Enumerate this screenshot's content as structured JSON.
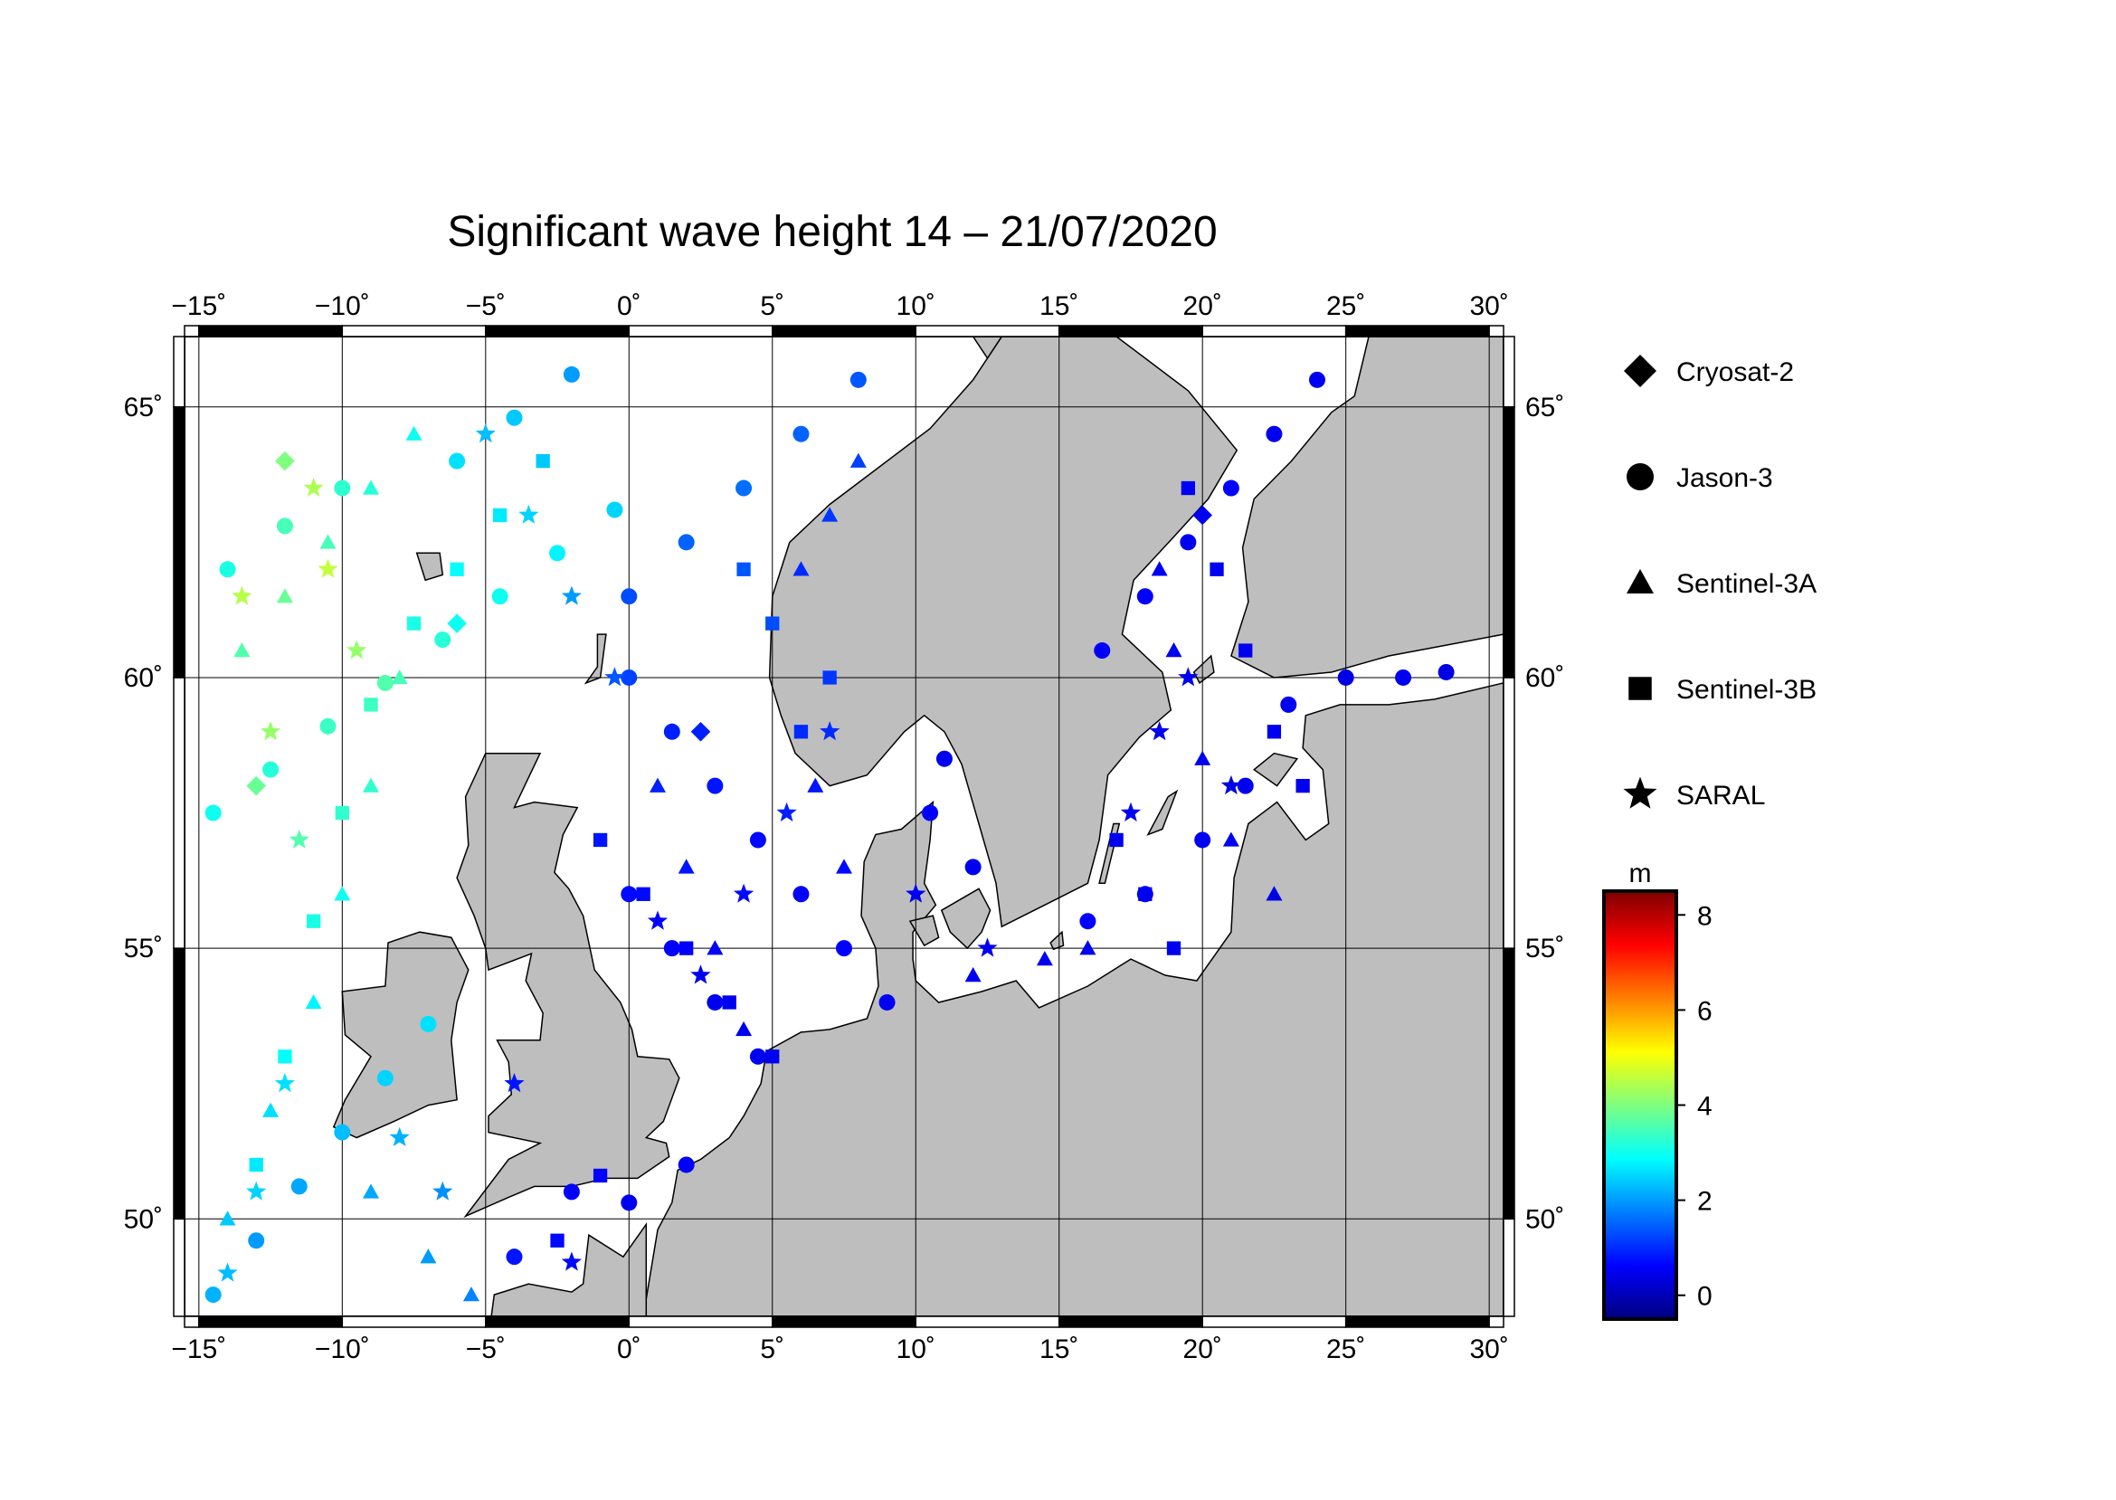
{
  "title": "Significant wave height 14 – 21/07/2020",
  "map": {
    "lon_range": [
      -15.5,
      30.5
    ],
    "lat_range": [
      48.2,
      66.3
    ],
    "lon_ticks": [
      {
        "value": -15,
        "label": "−15˚"
      },
      {
        "value": -10,
        "label": "−10˚"
      },
      {
        "value": -5,
        "label": "−5˚"
      },
      {
        "value": 0,
        "label": "0˚"
      },
      {
        "value": 5,
        "label": "5˚"
      },
      {
        "value": 10,
        "label": "10˚"
      },
      {
        "value": 15,
        "label": "15˚"
      },
      {
        "value": 20,
        "label": "20˚"
      },
      {
        "value": 25,
        "label": "25˚"
      },
      {
        "value": 30,
        "label": "30˚"
      }
    ],
    "lat_ticks": [
      {
        "value": 50,
        "label": "50˚"
      },
      {
        "value": 55,
        "label": "55˚"
      },
      {
        "value": 60,
        "label": "60˚"
      },
      {
        "value": 65,
        "label": "65˚"
      }
    ],
    "land_color": "#bebebe",
    "sea_color": "#ffffff",
    "grid": true
  },
  "legend": [
    {
      "name": "Cryosat-2",
      "symbol": "diamond-icon"
    },
    {
      "name": "Jason-3",
      "symbol": "circle-icon"
    },
    {
      "name": "Sentinel-3A",
      "symbol": "triangle-icon"
    },
    {
      "name": "Sentinel-3B",
      "symbol": "square-icon"
    },
    {
      "name": "SARAL",
      "symbol": "star-icon"
    }
  ],
  "colorbar": {
    "unit": "m",
    "min": -0.5,
    "max": 8.5,
    "ticks": [
      {
        "value": 0,
        "label": "0"
      },
      {
        "value": 2,
        "label": "2"
      },
      {
        "value": 4,
        "label": "4"
      },
      {
        "value": 6,
        "label": "6"
      },
      {
        "value": 8,
        "label": "8"
      }
    ],
    "colors": [
      "#00007f",
      "#0000ff",
      "#007fff",
      "#00ffff",
      "#7fff7f",
      "#ffff00",
      "#ff7f00",
      "#ff0000",
      "#7f0000"
    ]
  },
  "chart_data": {
    "type": "scatter",
    "title": "Significant wave height 14 – 21/07/2020",
    "xlim": [
      -15.5,
      30.5
    ],
    "ylim": [
      48.2,
      66.3
    ],
    "colorbar_unit": "m",
    "series": [
      {
        "name": "Jason-3",
        "marker": "circle",
        "points": [
          [
            -14.5,
            48.6,
            2.2
          ],
          [
            -13.0,
            49.6,
            2.0
          ],
          [
            -11.5,
            50.6,
            2.1
          ],
          [
            -10.0,
            51.6,
            2.3
          ],
          [
            -8.5,
            52.6,
            2.5
          ],
          [
            -7.0,
            53.6,
            2.6
          ],
          [
            -14.5,
            57.5,
            3.0
          ],
          [
            -12.5,
            58.3,
            3.2
          ],
          [
            -10.5,
            59.1,
            3.4
          ],
          [
            -8.5,
            59.9,
            3.6
          ],
          [
            -6.5,
            60.7,
            3.2
          ],
          [
            -4.5,
            61.5,
            3.0
          ],
          [
            -2.5,
            62.3,
            2.8
          ],
          [
            -0.5,
            63.1,
            2.5
          ],
          [
            0.0,
            60.0,
            1.2
          ],
          [
            1.5,
            59.0,
            0.9
          ],
          [
            3.0,
            58.0,
            0.8
          ],
          [
            4.5,
            57.0,
            0.7
          ],
          [
            6.0,
            56.0,
            0.6
          ],
          [
            7.5,
            55.0,
            0.6
          ],
          [
            9.0,
            54.0,
            0.5
          ],
          [
            0.0,
            56.0,
            0.7
          ],
          [
            1.5,
            55.0,
            0.6
          ],
          [
            3.0,
            54.0,
            0.5
          ],
          [
            4.5,
            53.0,
            0.5
          ],
          [
            0.0,
            61.5,
            1.3
          ],
          [
            2.0,
            62.5,
            1.5
          ],
          [
            4.0,
            63.5,
            1.6
          ],
          [
            6.0,
            64.5,
            1.5
          ],
          [
            8.0,
            65.5,
            1.4
          ],
          [
            -6.0,
            64.0,
            2.6
          ],
          [
            -4.0,
            64.8,
            2.4
          ],
          [
            -2.0,
            65.6,
            2.0
          ],
          [
            -10.0,
            63.5,
            3.3
          ],
          [
            -12.0,
            62.8,
            3.5
          ],
          [
            -14.0,
            62.0,
            3.1
          ],
          [
            16.5,
            60.5,
            0.6
          ],
          [
            18.0,
            61.5,
            0.6
          ],
          [
            19.5,
            62.5,
            0.5
          ],
          [
            21.0,
            63.5,
            0.6
          ],
          [
            22.5,
            64.5,
            0.5
          ],
          [
            24.0,
            65.5,
            0.5
          ],
          [
            23.0,
            59.5,
            0.5
          ],
          [
            25.0,
            60.0,
            0.4
          ],
          [
            27.0,
            60.0,
            0.5
          ],
          [
            28.5,
            60.1,
            0.4
          ],
          [
            16.0,
            55.5,
            0.6
          ],
          [
            18.0,
            56.0,
            0.5
          ],
          [
            20.0,
            57.0,
            0.5
          ],
          [
            21.5,
            58.0,
            0.5
          ],
          [
            -2.0,
            50.5,
            0.6
          ],
          [
            0.0,
            50.3,
            0.5
          ],
          [
            2.0,
            51.0,
            0.6
          ],
          [
            -4.0,
            49.3,
            0.8
          ],
          [
            12.0,
            56.5,
            0.5
          ],
          [
            10.5,
            57.5,
            0.6
          ],
          [
            11.0,
            58.5,
            0.5
          ]
        ]
      },
      {
        "name": "Sentinel-3A",
        "marker": "triangle",
        "points": [
          [
            -14.0,
            50.0,
            2.4
          ],
          [
            -12.5,
            52.0,
            2.6
          ],
          [
            -11.0,
            54.0,
            2.8
          ],
          [
            -10.0,
            56.0,
            3.0
          ],
          [
            -9.0,
            58.0,
            3.3
          ],
          [
            -8.0,
            60.0,
            3.5
          ],
          [
            -13.5,
            60.5,
            3.6
          ],
          [
            -12.0,
            61.5,
            3.8
          ],
          [
            -10.5,
            62.5,
            3.5
          ],
          [
            -9.0,
            63.5,
            3.2
          ],
          [
            -7.5,
            64.5,
            3.0
          ],
          [
            1.0,
            58.0,
            0.9
          ],
          [
            2.0,
            56.5,
            0.8
          ],
          [
            3.0,
            55.0,
            0.6
          ],
          [
            4.0,
            53.5,
            0.5
          ],
          [
            6.5,
            58.0,
            0.8
          ],
          [
            7.5,
            56.5,
            0.7
          ],
          [
            8.0,
            64.0,
            1.2
          ],
          [
            7.0,
            63.0,
            1.1
          ],
          [
            6.0,
            62.0,
            1.0
          ],
          [
            18.5,
            62.0,
            0.5
          ],
          [
            19.0,
            60.5,
            0.5
          ],
          [
            20.0,
            58.5,
            0.5
          ],
          [
            21.0,
            57.0,
            0.5
          ],
          [
            22.5,
            56.0,
            0.4
          ],
          [
            14.5,
            54.8,
            0.5
          ],
          [
            16.0,
            55.0,
            0.5
          ],
          [
            12.0,
            54.5,
            0.5
          ],
          [
            -9.0,
            50.5,
            2.1
          ],
          [
            -7.0,
            49.3,
            2.0
          ],
          [
            -5.5,
            48.6,
            1.8
          ]
        ]
      },
      {
        "name": "Sentinel-3B",
        "marker": "square",
        "points": [
          [
            -13.0,
            51.0,
            2.7
          ],
          [
            -12.0,
            53.0,
            2.9
          ],
          [
            -11.0,
            55.5,
            3.1
          ],
          [
            -10.0,
            57.5,
            3.3
          ],
          [
            -9.0,
            59.5,
            3.4
          ],
          [
            -7.5,
            61.0,
            3.1
          ],
          [
            -6.0,
            62.0,
            2.9
          ],
          [
            -4.5,
            63.0,
            2.7
          ],
          [
            -3.0,
            64.0,
            2.4
          ],
          [
            -1.0,
            57.0,
            0.8
          ],
          [
            0.5,
            56.0,
            0.7
          ],
          [
            2.0,
            55.0,
            0.6
          ],
          [
            3.5,
            54.0,
            0.5
          ],
          [
            5.0,
            53.0,
            0.5
          ],
          [
            6.0,
            59.0,
            1.0
          ],
          [
            7.0,
            60.0,
            1.1
          ],
          [
            5.0,
            61.0,
            1.3
          ],
          [
            4.0,
            62.0,
            1.4
          ],
          [
            19.5,
            63.5,
            0.5
          ],
          [
            20.5,
            62.0,
            0.5
          ],
          [
            21.5,
            60.5,
            0.5
          ],
          [
            22.5,
            59.0,
            0.5
          ],
          [
            23.5,
            58.0,
            0.5
          ],
          [
            17.0,
            57.0,
            0.5
          ],
          [
            18.0,
            56.0,
            0.5
          ],
          [
            19.0,
            55.0,
            0.5
          ],
          [
            -2.5,
            49.6,
            0.7
          ],
          [
            -1.0,
            50.8,
            0.6
          ]
        ]
      },
      {
        "name": "SARAL",
        "marker": "star",
        "points": [
          [
            -14.0,
            49.0,
            2.3
          ],
          [
            -13.0,
            50.5,
            2.5
          ],
          [
            -12.0,
            52.5,
            2.6
          ],
          [
            -11.5,
            57.0,
            3.6
          ],
          [
            -12.5,
            59.0,
            4.2
          ],
          [
            -13.5,
            61.5,
            4.5
          ],
          [
            -11.0,
            63.5,
            4.4
          ],
          [
            -10.5,
            62.0,
            4.6
          ],
          [
            -9.5,
            60.5,
            4.2
          ],
          [
            -5.0,
            64.5,
            2.3
          ],
          [
            -3.5,
            63.0,
            2.5
          ],
          [
            -2.0,
            61.5,
            2.0
          ],
          [
            -0.5,
            60.0,
            1.4
          ],
          [
            1.0,
            55.5,
            0.6
          ],
          [
            2.5,
            54.5,
            0.5
          ],
          [
            4.0,
            56.0,
            0.7
          ],
          [
            5.5,
            57.5,
            0.9
          ],
          [
            7.0,
            59.0,
            1.0
          ],
          [
            17.5,
            57.5,
            0.5
          ],
          [
            18.5,
            59.0,
            0.5
          ],
          [
            19.5,
            60.0,
            0.5
          ],
          [
            21.0,
            58.0,
            0.4
          ],
          [
            -8.0,
            51.5,
            2.2
          ],
          [
            -6.5,
            50.5,
            1.9
          ],
          [
            -4.0,
            52.5,
            0.8
          ],
          [
            -2.0,
            49.2,
            0.7
          ],
          [
            12.5,
            55.0,
            0.5
          ],
          [
            10.0,
            56.0,
            0.5
          ]
        ]
      },
      {
        "name": "Cryosat-2",
        "marker": "diamond",
        "points": [
          [
            -13.0,
            58.0,
            3.8
          ],
          [
            -12.0,
            64.0,
            4.0
          ],
          [
            -6.0,
            61.0,
            3.0
          ],
          [
            2.5,
            59.0,
            0.9
          ],
          [
            20.0,
            63.0,
            0.5
          ]
        ]
      }
    ]
  }
}
